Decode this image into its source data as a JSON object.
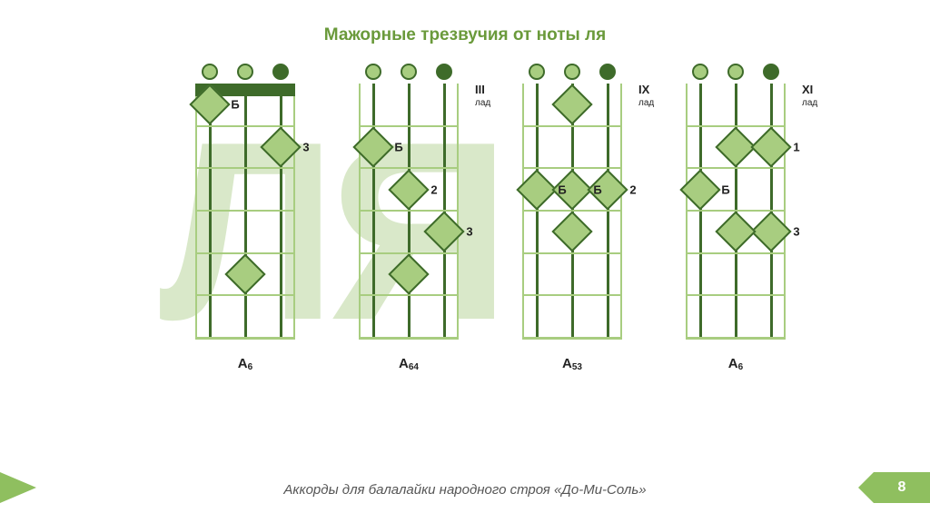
{
  "colors": {
    "title": "#6a9a3b",
    "light": "#a8cd80",
    "dark": "#3e6b2a",
    "outline": "#a8cd80",
    "string": "#3e6b2a",
    "fret": "#a8cd80",
    "bgletter": "#d9e8c9",
    "accent": "#8fbf5f",
    "markerFill": "#a8cd80",
    "markerBorder": "#3e6b2a",
    "captionText": "#222222",
    "footerText": "#666666"
  },
  "title": "Мажорные трезвучия от ноты ля",
  "bgLetters": "ЛЯ",
  "footerText": "Аккорды для балалайки народного строя «До-Ми-Соль»",
  "pageNumber": "8",
  "layout": {
    "diagramXs": [
      215,
      395,
      575,
      755
    ],
    "diagramWidth": 110,
    "neckHeight": 280,
    "fretCount": 6,
    "stringXs": [
      14,
      53,
      92
    ],
    "tunerFills": [
      "light",
      "light",
      "dark"
    ],
    "captionY": 300
  },
  "diagrams": [
    {
      "hasNut": true,
      "fretLabel": null,
      "caption": "A",
      "captionSub": "6",
      "markers": [
        {
          "string": 0,
          "fret": 1,
          "label": "Б"
        },
        {
          "string": 2,
          "fret": 2,
          "label": "3"
        },
        {
          "string": 1,
          "fret": 5,
          "label": ""
        }
      ]
    },
    {
      "hasNut": false,
      "fretLabel": {
        "num": "III",
        "lad": "лад"
      },
      "caption": "A",
      "captionSub": "64",
      "markers": [
        {
          "string": 0,
          "fret": 2,
          "label": "Б"
        },
        {
          "string": 1,
          "fret": 3,
          "label": "2"
        },
        {
          "string": 2,
          "fret": 4,
          "label": "3"
        },
        {
          "string": 1,
          "fret": 5,
          "label": ""
        }
      ]
    },
    {
      "hasNut": false,
      "fretLabel": {
        "num": "IX",
        "lad": "лад"
      },
      "caption": "A",
      "captionSub": "53",
      "markers": [
        {
          "string": 1,
          "fret": 1,
          "label": ""
        },
        {
          "string": 0,
          "fret": 3,
          "label": "Б"
        },
        {
          "string": 1,
          "fret": 3,
          "label": "Б"
        },
        {
          "string": 2,
          "fret": 3,
          "label": "2"
        },
        {
          "string": 1,
          "fret": 4,
          "label": ""
        }
      ]
    },
    {
      "hasNut": false,
      "fretLabel": {
        "num": "XI",
        "lad": "лад"
      },
      "caption": "A",
      "captionSub": "6",
      "markers": [
        {
          "string": 1,
          "fret": 2,
          "label": ""
        },
        {
          "string": 2,
          "fret": 2,
          "label": "1"
        },
        {
          "string": 0,
          "fret": 3,
          "label": "Б"
        },
        {
          "string": 2,
          "fret": 4,
          "label": "3"
        },
        {
          "string": 1,
          "fret": 4,
          "label": ""
        }
      ]
    }
  ]
}
